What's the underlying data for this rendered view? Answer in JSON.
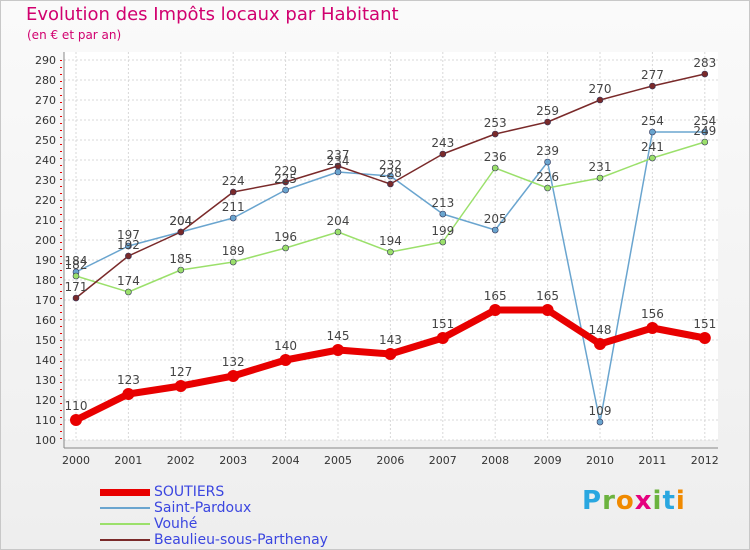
{
  "header": {
    "title": "Evolution des Impôts locaux par Habitant",
    "subtitle": "(en € et par an)"
  },
  "logo": {
    "letters": [
      "P",
      "r",
      "o",
      "x",
      "i",
      "t",
      "i"
    ],
    "colors": [
      "#2aa7e0",
      "#6cb33f",
      "#f08a00",
      "#e5007e",
      "#6cb33f",
      "#2aa7e0",
      "#f08a00"
    ]
  },
  "chart_data": {
    "type": "line",
    "x": [
      "2000",
      "2001",
      "2002",
      "2003",
      "2004",
      "2005",
      "2006",
      "2007",
      "2008",
      "2009",
      "2010",
      "2011",
      "2012"
    ],
    "ylim": [
      100,
      290
    ],
    "yticks": [
      100,
      110,
      120,
      130,
      140,
      150,
      160,
      170,
      180,
      190,
      200,
      210,
      220,
      230,
      240,
      250,
      260,
      270,
      280,
      290
    ],
    "grid": true,
    "legend_position": "bottom-left",
    "series": [
      {
        "name": "SOUTIERS",
        "color": "#e80000",
        "width": 7,
        "marker_radius": 6,
        "values": [
          110,
          123,
          127,
          132,
          140,
          145,
          143,
          151,
          165,
          165,
          148,
          156,
          151
        ]
      },
      {
        "name": "Saint-Pardoux",
        "color": "#6aa5cf",
        "width": 1.5,
        "marker_radius": 3,
        "values": [
          184,
          197,
          204,
          211,
          225,
          234,
          232,
          213,
          205,
          239,
          109,
          254,
          254
        ]
      },
      {
        "name": "Vouhé",
        "color": "#9be06b",
        "width": 1.5,
        "marker_radius": 3,
        "values": [
          182,
          174,
          185,
          189,
          196,
          204,
          194,
          199,
          236,
          226,
          231,
          241,
          249
        ]
      },
      {
        "name": "Beaulieu-sous-Parthenay",
        "color": "#7a2a2a",
        "width": 1.5,
        "marker_radius": 3,
        "values": [
          171,
          192,
          204,
          224,
          229,
          237,
          228,
          243,
          253,
          259,
          270,
          277,
          283
        ]
      }
    ]
  }
}
